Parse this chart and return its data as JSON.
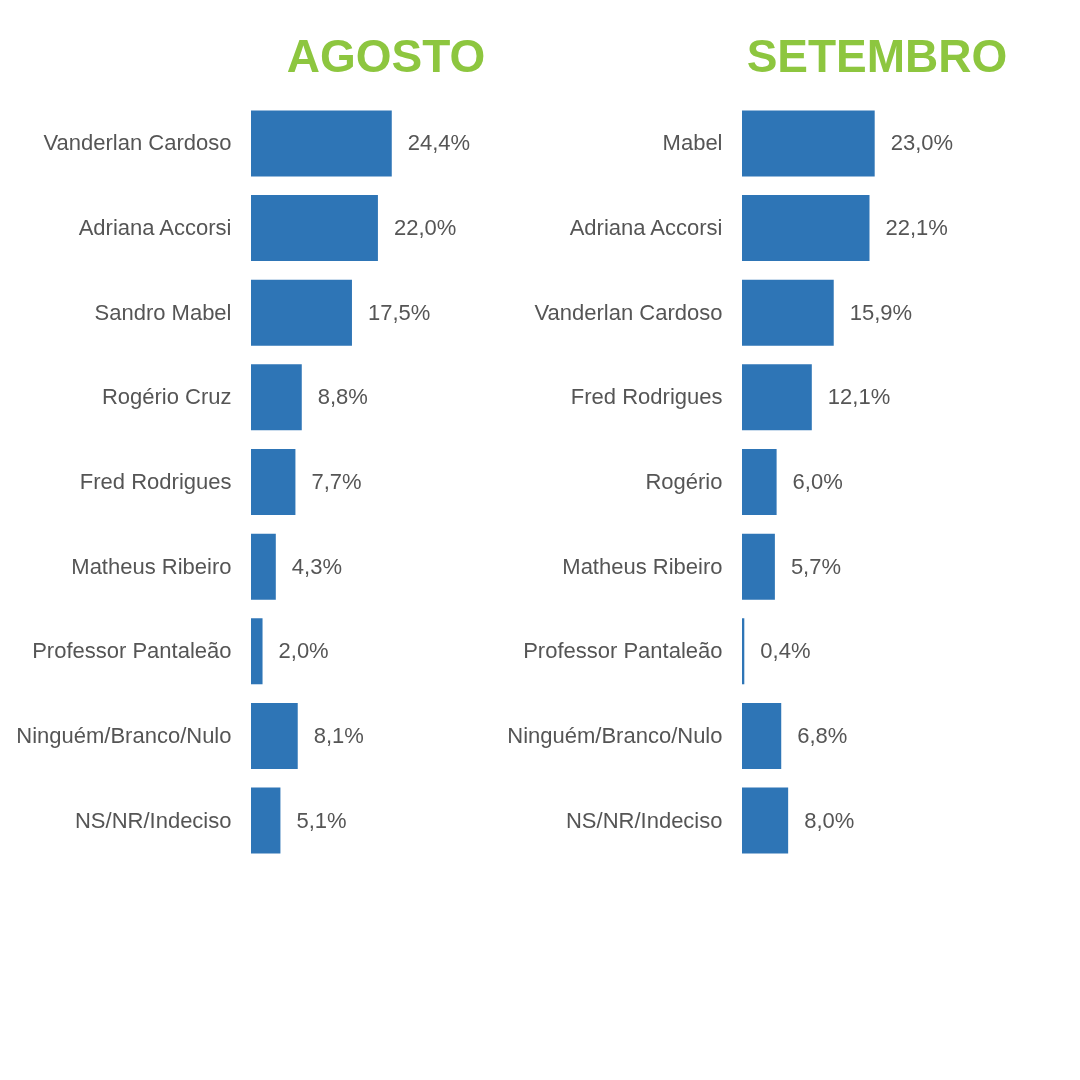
{
  "chart_data": [
    {
      "type": "bar",
      "orientation": "horizontal",
      "title": "AGOSTO",
      "categories": [
        "Vanderlan Cardoso",
        "Adriana Accorsi",
        "Sandro Mabel",
        "Rogério Cruz",
        "Fred Rodrigues",
        "Matheus Ribeiro",
        "Professor Pantaleão",
        "Ninguém/Branco/Nulo",
        "NS/NR/Indeciso"
      ],
      "series": [
        {
          "color": "#2e75b6",
          "values": [
            24.4,
            22.0,
            17.5,
            8.8,
            7.7,
            4.3,
            2.0,
            8.1,
            5.1
          ],
          "value_labels": [
            "24,4%",
            "22,0%",
            "17,5%",
            "8,8%",
            "7,7%",
            "4,3%",
            "2,0%",
            "8,1%",
            "5,1%"
          ]
        }
      ]
    },
    {
      "type": "bar",
      "orientation": "horizontal",
      "title": "SETEMBRO",
      "categories": [
        "Mabel",
        "Adriana Accorsi",
        "Vanderlan Cardoso",
        "Fred Rodrigues",
        "Rogério",
        "Matheus Ribeiro",
        "Professor Pantaleão",
        "Ninguém/Branco/Nulo",
        "NS/NR/Indeciso"
      ],
      "series": [
        {
          "color": "#2e75b6",
          "values": [
            23.0,
            22.1,
            15.9,
            12.1,
            6.0,
            5.7,
            0.4,
            6.8,
            8.0
          ],
          "value_labels": [
            "23,0%",
            "22,1%",
            "15,9%",
            "12,1%",
            "6,0%",
            "5,7%",
            "0,4%",
            "6,8%",
            "8,0%"
          ]
        }
      ]
    }
  ]
}
